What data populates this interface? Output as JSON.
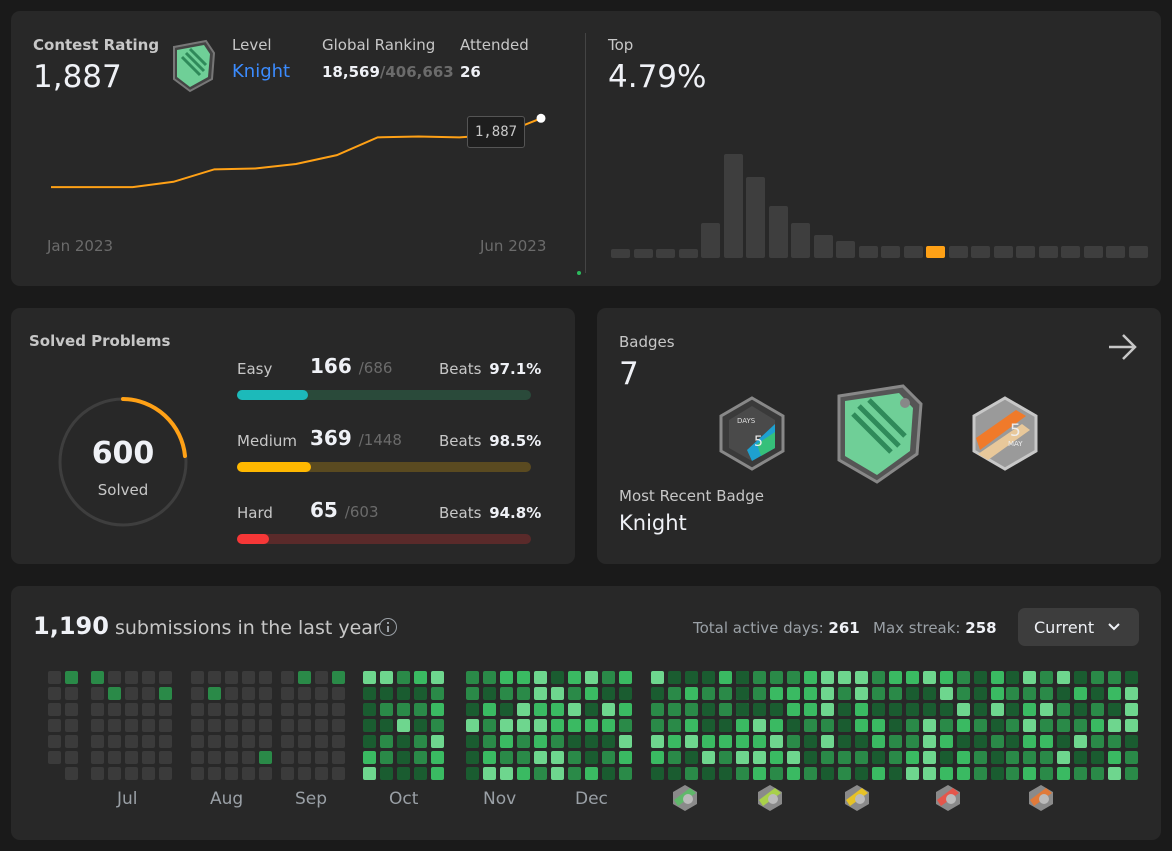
{
  "contest": {
    "rating_label": "Contest Rating",
    "rating_value": "1,887",
    "level_label": "Level",
    "level_value": "Knight",
    "global_label": "Global Ranking",
    "global_rank": "18,569",
    "global_total": "/406,663",
    "attended_label": "Attended",
    "attended_value": "26",
    "chart_start": "Jan 2023",
    "chart_end": "Jun 2023",
    "tooltip": "1,887",
    "top_label": "Top",
    "top_value": "4.79%"
  },
  "chart_data": [
    {
      "type": "line",
      "x": [
        "Jan 2023",
        "",
        "",
        "",
        "",
        "",
        "",
        "",
        "",
        "",
        "",
        "",
        "Jun 2023"
      ],
      "values": [
        1500,
        1500,
        1500,
        1530,
        1600,
        1605,
        1630,
        1680,
        1780,
        1785,
        1780,
        1795,
        1887
      ],
      "color": "#ffa116"
    },
    {
      "type": "bar",
      "values": [
        1,
        1,
        1,
        1,
        6,
        18,
        14,
        9,
        6,
        4,
        3,
        2,
        2,
        2,
        2,
        2,
        2,
        2,
        2,
        2,
        2,
        2,
        2,
        2
      ],
      "highlight_index": 14,
      "color": "#3e3e3e",
      "highlight_color": "#ffa116"
    }
  ],
  "solved": {
    "title": "Solved Problems",
    "total": "600",
    "total_label": "Solved",
    "rows": [
      {
        "label": "Easy",
        "count": "166",
        "total": "/686",
        "beats_label": "Beats",
        "beats": "97.1%",
        "fill": 0.24,
        "color": "#1cbaba",
        "track": "#2a4a3a"
      },
      {
        "label": "Medium",
        "count": "369",
        "total": "/1448",
        "beats_label": "Beats",
        "beats": "98.5%",
        "fill": 0.25,
        "color": "#ffb800",
        "track": "#5a4a20"
      },
      {
        "label": "Hard",
        "count": "65",
        "total": "/603",
        "beats_label": "Beats",
        "beats": "94.8%",
        "fill": 0.11,
        "color": "#f63737",
        "track": "#5a2a2a"
      }
    ]
  },
  "badges": {
    "title": "Badges",
    "count": "7",
    "recent_label": "Most Recent Badge",
    "recent_value": "Knight",
    "items": [
      "days-badge-icon",
      "knight-badge-icon",
      "may-badge-icon"
    ],
    "may_number": "5",
    "may_text": "MAY",
    "days_text": "DAYS"
  },
  "submissions": {
    "count": "1,190",
    "text": "submissions in the last year",
    "active_label": "Total active days:",
    "active_value": "261",
    "streak_label": "Max streak:",
    "streak_value": "258",
    "dropdown": "Current",
    "months": [
      "Jul",
      "Aug",
      "Sep",
      "Oct",
      "Nov",
      "Dec"
    ],
    "month_badges": [
      "jan-badge-icon",
      "feb-badge-icon",
      "mar-badge-icon",
      "apr-badge-icon",
      "may-month-badge-icon"
    ]
  }
}
